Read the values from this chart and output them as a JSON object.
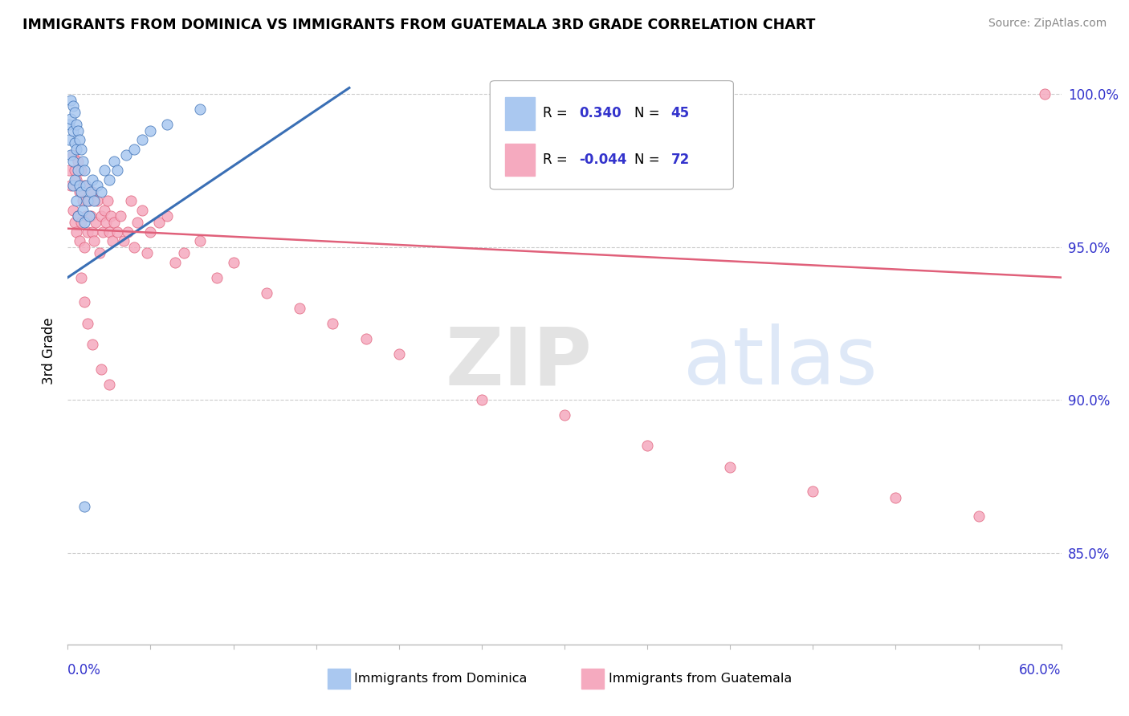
{
  "title": "IMMIGRANTS FROM DOMINICA VS IMMIGRANTS FROM GUATEMALA 3RD GRADE CORRELATION CHART",
  "source": "Source: ZipAtlas.com",
  "ylabel": "3rd Grade",
  "right_ytick_labels": [
    "100.0%",
    "95.0%",
    "90.0%",
    "85.0%"
  ],
  "right_ytick_values": [
    1.0,
    0.95,
    0.9,
    0.85
  ],
  "xmin": 0.0,
  "xmax": 0.6,
  "ymin": 0.82,
  "ymax": 1.012,
  "legend_blue_R": "0.340",
  "legend_blue_N": "45",
  "legend_pink_R": "-0.044",
  "legend_pink_N": "72",
  "blue_color": "#aac8f0",
  "pink_color": "#f5aabf",
  "blue_line_color": "#3a6fb5",
  "pink_line_color": "#e0607a",
  "legend_R_color": "#3333cc",
  "watermark_color": "#d0dff5",
  "blue_scatter_x": [
    0.001,
    0.001,
    0.002,
    0.002,
    0.002,
    0.003,
    0.003,
    0.003,
    0.003,
    0.004,
    0.004,
    0.004,
    0.005,
    0.005,
    0.005,
    0.006,
    0.006,
    0.006,
    0.007,
    0.007,
    0.008,
    0.008,
    0.009,
    0.009,
    0.01,
    0.01,
    0.011,
    0.012,
    0.013,
    0.014,
    0.015,
    0.016,
    0.018,
    0.02,
    0.022,
    0.025,
    0.028,
    0.03,
    0.035,
    0.04,
    0.045,
    0.05,
    0.06,
    0.08,
    0.01
  ],
  "blue_scatter_y": [
    0.99,
    0.985,
    0.998,
    0.992,
    0.98,
    0.996,
    0.988,
    0.978,
    0.97,
    0.994,
    0.984,
    0.972,
    0.99,
    0.982,
    0.965,
    0.988,
    0.975,
    0.96,
    0.985,
    0.97,
    0.982,
    0.968,
    0.978,
    0.962,
    0.975,
    0.958,
    0.97,
    0.965,
    0.96,
    0.968,
    0.972,
    0.965,
    0.97,
    0.968,
    0.975,
    0.972,
    0.978,
    0.975,
    0.98,
    0.982,
    0.985,
    0.988,
    0.99,
    0.995,
    0.865
  ],
  "pink_scatter_x": [
    0.001,
    0.002,
    0.003,
    0.003,
    0.004,
    0.004,
    0.005,
    0.005,
    0.006,
    0.006,
    0.007,
    0.007,
    0.008,
    0.008,
    0.009,
    0.01,
    0.01,
    0.011,
    0.012,
    0.013,
    0.014,
    0.015,
    0.015,
    0.016,
    0.017,
    0.018,
    0.019,
    0.02,
    0.021,
    0.022,
    0.023,
    0.024,
    0.025,
    0.026,
    0.027,
    0.028,
    0.03,
    0.032,
    0.034,
    0.036,
    0.038,
    0.04,
    0.042,
    0.045,
    0.048,
    0.05,
    0.055,
    0.06,
    0.065,
    0.07,
    0.08,
    0.09,
    0.1,
    0.12,
    0.14,
    0.16,
    0.18,
    0.2,
    0.25,
    0.3,
    0.35,
    0.4,
    0.45,
    0.5,
    0.55,
    0.008,
    0.01,
    0.012,
    0.015,
    0.02,
    0.025,
    0.59
  ],
  "pink_scatter_y": [
    0.975,
    0.97,
    0.98,
    0.962,
    0.975,
    0.958,
    0.972,
    0.955,
    0.978,
    0.96,
    0.968,
    0.952,
    0.975,
    0.958,
    0.965,
    0.97,
    0.95,
    0.96,
    0.955,
    0.965,
    0.96,
    0.968,
    0.955,
    0.952,
    0.958,
    0.965,
    0.948,
    0.96,
    0.955,
    0.962,
    0.958,
    0.965,
    0.955,
    0.96,
    0.952,
    0.958,
    0.955,
    0.96,
    0.952,
    0.955,
    0.965,
    0.95,
    0.958,
    0.962,
    0.948,
    0.955,
    0.958,
    0.96,
    0.945,
    0.948,
    0.952,
    0.94,
    0.945,
    0.935,
    0.93,
    0.925,
    0.92,
    0.915,
    0.9,
    0.895,
    0.885,
    0.878,
    0.87,
    0.868,
    0.862,
    0.94,
    0.932,
    0.925,
    0.918,
    0.91,
    0.905,
    1.0
  ],
  "blue_trendline_x": [
    0.0,
    0.17
  ],
  "blue_trendline_y": [
    0.94,
    1.002
  ],
  "pink_trendline_x": [
    0.0,
    0.6
  ],
  "pink_trendline_y": [
    0.956,
    0.94
  ]
}
